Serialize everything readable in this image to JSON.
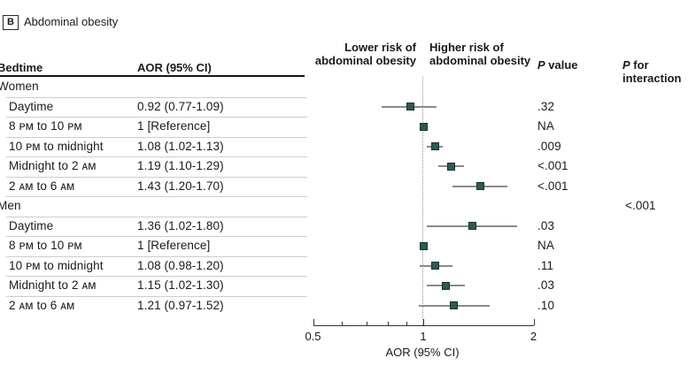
{
  "panel": {
    "label": "B",
    "title": "Abdominal obesity"
  },
  "table": {
    "header": {
      "bedtime": "Bedtime",
      "aor": "AOR (95% CI)"
    }
  },
  "plot_headers": {
    "lower_risk_lines": [
      "Lower risk of",
      "abdominal obesity"
    ],
    "higher_risk_lines": [
      "Higher risk of",
      "abdominal obesity"
    ],
    "p_value": {
      "italic": "P",
      "rest": " value"
    },
    "p_interaction": {
      "italic": "P",
      "rest": " for interaction"
    }
  },
  "colors": {
    "marker_fill": "#2e5a55",
    "marker_border": "#17322f",
    "ci_line": "#8a8a8a",
    "reference_line": "#949494",
    "separator": "#cdcdcd",
    "text": "#1a1a1a"
  },
  "chart_data": {
    "type": "forest",
    "title": "Abdominal obesity",
    "xlabel": "AOR (95% CI)",
    "x_scale": "log",
    "x_range": [
      0.5,
      2
    ],
    "reference_value": 1,
    "major_ticks": [
      {
        "value": 0.5,
        "label": "0.5"
      },
      {
        "value": 1,
        "label": "1"
      },
      {
        "value": 2,
        "label": "2"
      }
    ],
    "minor_ticks": [
      0.6,
      0.7,
      0.8,
      0.9
    ],
    "groups": [
      {
        "label": "Women",
        "p_interaction": "",
        "rows": [
          {
            "label": "Daytime",
            "aor": "0.92 (0.77-1.09)",
            "est": 0.92,
            "lo": 0.77,
            "hi": 1.09,
            "p": ".32"
          },
          {
            "label": "8 ᴘᴍ to 10 ᴘᴍ",
            "aor": "1 [Reference]",
            "est": 1,
            "lo": null,
            "hi": null,
            "p": "NA"
          },
          {
            "label": "10 ᴘᴍ to midnight",
            "aor": "1.08 (1.02-1.13)",
            "est": 1.08,
            "lo": 1.02,
            "hi": 1.13,
            "p": ".009"
          },
          {
            "label": "Midnight to 2 ᴀᴍ",
            "aor": "1.19 (1.10-1.29)",
            "est": 1.19,
            "lo": 1.1,
            "hi": 1.29,
            "p": "<.001"
          },
          {
            "label": "2 ᴀᴍ to 6 ᴀᴍ",
            "aor": "1.43 (1.20-1.70)",
            "est": 1.43,
            "lo": 1.2,
            "hi": 1.7,
            "p": "<.001"
          }
        ]
      },
      {
        "label": "Men",
        "p_interaction": "<.001",
        "rows": [
          {
            "label": "Daytime",
            "aor": "1.36 (1.02-1.80)",
            "est": 1.36,
            "lo": 1.02,
            "hi": 1.8,
            "p": ".03"
          },
          {
            "label": "8 ᴘᴍ to 10 ᴘᴍ",
            "aor": "1 [Reference]",
            "est": 1,
            "lo": null,
            "hi": null,
            "p": "NA"
          },
          {
            "label": "10 ᴘᴍ to midnight",
            "aor": "1.08 (0.98-1.20)",
            "est": 1.08,
            "lo": 0.98,
            "hi": 1.2,
            "p": ".11"
          },
          {
            "label": "Midnight to 2 ᴀᴍ",
            "aor": "1.15 (1.02-1.30)",
            "est": 1.15,
            "lo": 1.02,
            "hi": 1.3,
            "p": ".03"
          },
          {
            "label": "2 ᴀᴍ to 6 ᴀᴍ",
            "aor": "1.21 (0.97-1.52)",
            "est": 1.21,
            "lo": 0.97,
            "hi": 1.52,
            "p": ".10"
          }
        ]
      }
    ]
  }
}
